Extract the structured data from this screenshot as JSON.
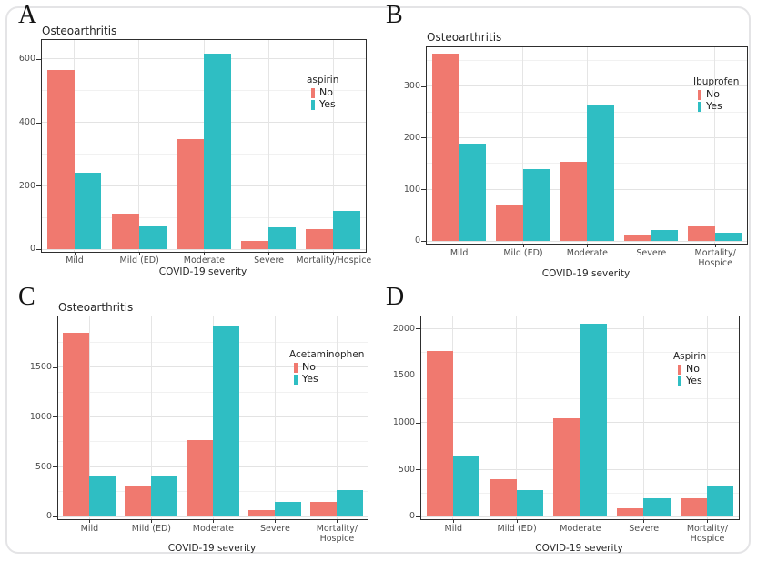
{
  "figure": {
    "panel_letters": [
      "A",
      "B",
      "C",
      "D"
    ],
    "colors": {
      "no_fill": "#F0796F",
      "yes_fill": "#2FBEC3"
    }
  },
  "chart_data": [
    {
      "panel_label": "A",
      "type": "bar",
      "title": "Osteoarthritis",
      "legend_title": "aspirin",
      "legend_position": "inside-top-right",
      "xlabel": "COVID-19 severity",
      "categories": [
        "Mild",
        "Mild (ED)",
        "Moderate",
        "Severe",
        "Mortality/Hospice"
      ],
      "yticks": [
        0,
        200,
        400,
        600
      ],
      "ylim": [
        0,
        660
      ],
      "grid": true,
      "series": [
        {
          "name": "No",
          "color": "#F0796F",
          "values": [
            565,
            112,
            348,
            25,
            64
          ]
        },
        {
          "name": "Yes",
          "color": "#2FBEC3",
          "values": [
            240,
            72,
            617,
            68,
            120
          ]
        }
      ]
    },
    {
      "panel_label": "B",
      "type": "bar",
      "title": "Osteoarthritis",
      "legend_title": "Ibuprofen",
      "legend_position": "inside-top-right",
      "xlabel": "COVID-19 severity",
      "categories": [
        "Mild",
        "Mild (ED)",
        "Moderate",
        "Severe",
        "Mortality/\nHospice"
      ],
      "yticks": [
        0,
        100,
        200,
        300
      ],
      "ylim": [
        0,
        375
      ],
      "grid": true,
      "series": [
        {
          "name": "No",
          "color": "#F0796F",
          "values": [
            363,
            70,
            154,
            12,
            28
          ]
        },
        {
          "name": "Yes",
          "color": "#2FBEC3",
          "values": [
            188,
            139,
            262,
            22,
            16
          ]
        }
      ]
    },
    {
      "panel_label": "C",
      "type": "bar",
      "title": "Osteoarthritis",
      "legend_title": "Acetaminophen",
      "legend_position": "inside-top-right",
      "xlabel": "COVID-19 severity",
      "categories": [
        "Mild",
        "Mild (ED)",
        "Moderate",
        "Severe",
        "Mortality/\nHospice"
      ],
      "yticks": [
        0,
        500,
        1000,
        1500
      ],
      "ylim": [
        0,
        2010
      ],
      "grid": true,
      "series": [
        {
          "name": "No",
          "color": "#F0796F",
          "values": [
            1850,
            305,
            770,
            60,
            150
          ]
        },
        {
          "name": "Yes",
          "color": "#2FBEC3",
          "values": [
            400,
            410,
            1920,
            145,
            265
          ]
        }
      ]
    },
    {
      "panel_label": "D",
      "type": "bar",
      "title": null,
      "legend_title": "Aspirin",
      "legend_position": "inside-top-right",
      "xlabel": "COVID-19 severity",
      "categories": [
        "Mild",
        "Mild (ED)",
        "Moderate",
        "Severe",
        "Mortality/\nHospice"
      ],
      "yticks": [
        0,
        500,
        1000,
        1500,
        2000
      ],
      "ylim": [
        0,
        2130
      ],
      "grid": true,
      "series": [
        {
          "name": "No",
          "color": "#F0796F",
          "values": [
            1760,
            400,
            1050,
            90,
            195
          ]
        },
        {
          "name": "Yes",
          "color": "#2FBEC3",
          "values": [
            640,
            277,
            2050,
            196,
            315
          ]
        }
      ]
    }
  ]
}
